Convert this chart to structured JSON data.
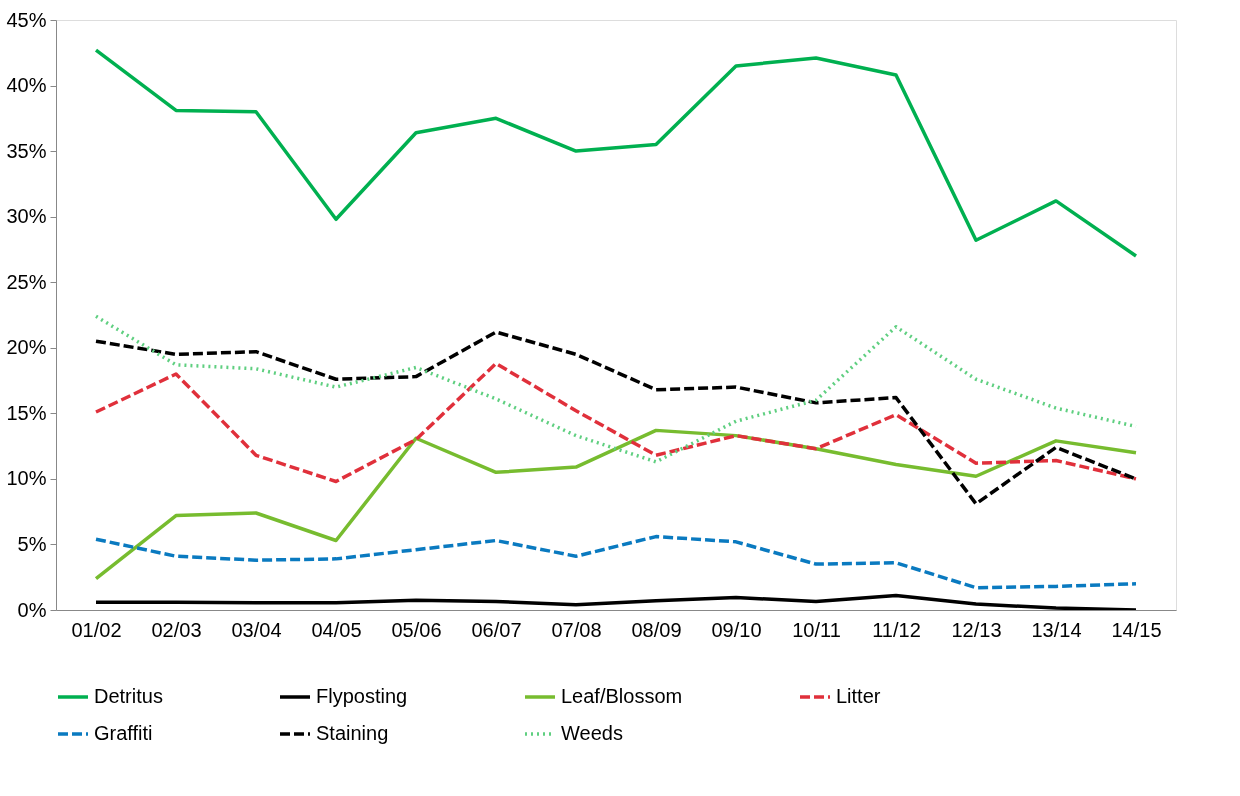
{
  "chart_data": {
    "type": "line",
    "categories": [
      "01/02",
      "02/03",
      "03/04",
      "04/05",
      "05/06",
      "06/07",
      "07/08",
      "08/09",
      "09/10",
      "10/11",
      "11/12",
      "12/13",
      "13/14",
      "14/15"
    ],
    "ylim": [
      0,
      45
    ],
    "yticks": [
      {
        "value": 0,
        "label": "0%"
      },
      {
        "value": 5,
        "label": "5%"
      },
      {
        "value": 10,
        "label": "10%"
      },
      {
        "value": 15,
        "label": "15%"
      },
      {
        "value": 20,
        "label": "20%"
      },
      {
        "value": 25,
        "label": "25%"
      },
      {
        "value": 30,
        "label": "30%"
      },
      {
        "value": 35,
        "label": "35%"
      },
      {
        "value": 40,
        "label": "40%"
      },
      {
        "value": 45,
        "label": "45%"
      }
    ],
    "grid": false,
    "legend": "bottom",
    "marker": "none",
    "series": [
      {
        "name": "Detritus",
        "color": "#00b050",
        "line_style": "solid",
        "values": [
          42.7,
          38.1,
          38.0,
          29.8,
          36.4,
          37.5,
          35.0,
          35.5,
          41.5,
          42.1,
          40.8,
          28.2,
          31.2,
          27.0
        ]
      },
      {
        "name": "Flyposting",
        "color": "#000000",
        "line_style": "solid",
        "values": [
          0.6,
          0.6,
          0.55,
          0.55,
          0.75,
          0.65,
          0.4,
          0.7,
          0.95,
          0.65,
          1.1,
          0.45,
          0.15,
          0.0
        ]
      },
      {
        "name": "Leaf/Blossom",
        "color": "#77bc2f",
        "line_style": "solid",
        "values": [
          2.4,
          7.2,
          7.4,
          5.3,
          13.1,
          10.5,
          10.9,
          13.7,
          13.3,
          12.3,
          11.1,
          10.2,
          12.9,
          12.0
        ]
      },
      {
        "name": "Litter",
        "color": "#e0303b",
        "line_style": "dashed",
        "values": [
          15.1,
          18.0,
          11.8,
          9.8,
          13.0,
          18.8,
          15.2,
          11.8,
          13.3,
          12.3,
          14.9,
          11.2,
          11.4,
          10.0
        ]
      },
      {
        "name": "Graffiti",
        "color": "#0a7ac0",
        "line_style": "dashed",
        "values": [
          5.4,
          4.1,
          3.8,
          3.9,
          4.6,
          5.3,
          4.1,
          5.6,
          5.2,
          3.5,
          3.6,
          1.7,
          1.8,
          2.0
        ]
      },
      {
        "name": "Staining",
        "color": "#000000",
        "line_style": "dashed",
        "values": [
          20.5,
          19.5,
          19.7,
          17.6,
          17.8,
          21.2,
          19.5,
          16.8,
          17.0,
          15.8,
          16.2,
          8.1,
          12.4,
          10.0
        ]
      },
      {
        "name": "Weeds",
        "color": "#5fcf80",
        "line_style": "dotted",
        "values": [
          22.4,
          18.7,
          18.4,
          17.0,
          18.5,
          16.1,
          13.3,
          11.3,
          14.4,
          16.0,
          21.6,
          17.6,
          15.4,
          14.0
        ]
      }
    ]
  }
}
